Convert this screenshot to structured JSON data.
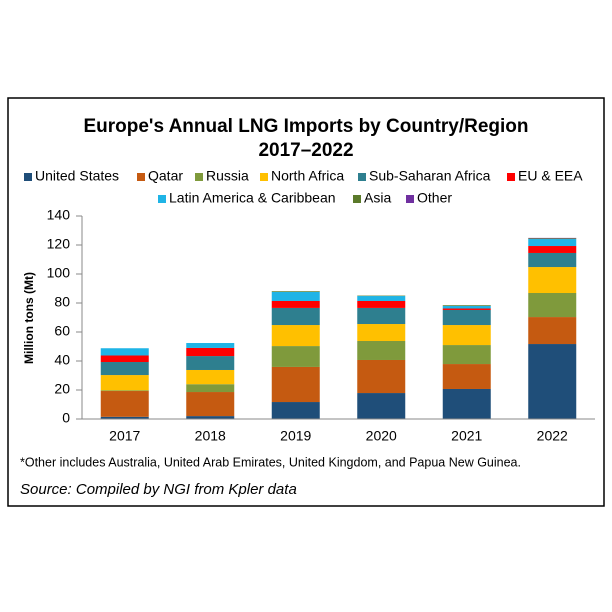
{
  "chart_data": {
    "type": "stacked-bar",
    "title": "Europe's Annual LNG Imports by Country/Region",
    "subtitle": "2017–2022",
    "y_label": "Million tons (Mt)",
    "footnote": "*Other includes Australia, United Arab Emirates, United Kingdom, and Papua New Guinea.",
    "source": "Source: Compiled by NGI from Kpler data",
    "categories": [
      "2017",
      "2018",
      "2019",
      "2020",
      "2021",
      "2022"
    ],
    "series": [
      {
        "name": "United States",
        "color": "#1f4e79",
        "values": [
          1.5,
          2,
          11.7,
          17.9,
          20.7,
          51.7
        ]
      },
      {
        "name": "Qatar",
        "color": "#c55a11",
        "values": [
          17.8,
          16.6,
          24.2,
          22.8,
          17.2,
          18.6
        ]
      },
      {
        "name": "Russia",
        "color": "#7f9a3c",
        "values": [
          0.5,
          5.4,
          14.4,
          13.1,
          13.1,
          16.6
        ]
      },
      {
        "name": "North Africa",
        "color": "#ffc000",
        "values": [
          10.5,
          9.8,
          14.5,
          11.7,
          13.8,
          17.9
        ]
      },
      {
        "name": "Sub-Saharan Africa",
        "color": "#2e7f8f",
        "values": [
          9,
          9.6,
          11.8,
          11.1,
          10.4,
          9.7
        ]
      },
      {
        "name": "EU & EEA",
        "color": "#ff0000",
        "values": [
          4.5,
          5.6,
          4.8,
          4.8,
          1,
          4.8
        ]
      },
      {
        "name": "Latin America & Caribbean",
        "color": "#1fb4e6",
        "values": [
          5,
          3.4,
          6.2,
          3.4,
          1.8,
          4.8
        ]
      },
      {
        "name": "Asia",
        "color": "#5b7a2a",
        "values": [
          0,
          0,
          0.5,
          0.3,
          0.5,
          0.5
        ]
      },
      {
        "name": "Other",
        "color": "#7030a0",
        "values": [
          0,
          0,
          0,
          0,
          0,
          0.3
        ]
      }
    ],
    "ylim": [
      0,
      140
    ],
    "yticks": [
      0,
      20,
      40,
      60,
      80,
      100,
      120,
      140
    ]
  }
}
